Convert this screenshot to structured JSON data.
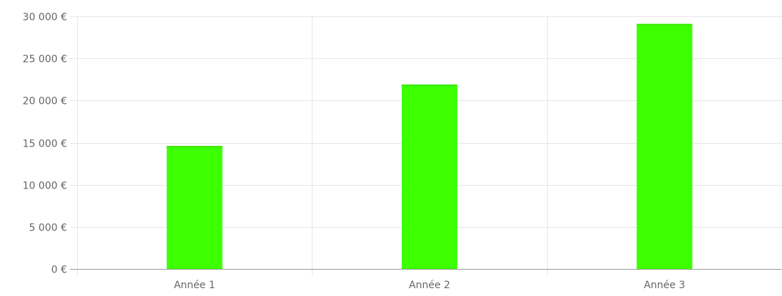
{
  "chart_data": {
    "type": "bar",
    "categories": [
      "Année 1",
      "Année 2",
      "Année 3"
    ],
    "values": [
      14600,
      21900,
      29100
    ],
    "ylim": [
      0,
      30000
    ],
    "y_ticks": [
      0,
      5000,
      10000,
      15000,
      20000,
      25000,
      30000
    ],
    "y_tick_labels": [
      "0 €",
      "5 000 €",
      "10 000 €",
      "15 000 €",
      "20 000 €",
      "25 000 €",
      "30 000 €"
    ],
    "grid": true,
    "legend": "none",
    "colors": {
      "bar_fill": "#3cff00",
      "bar_top": "#36e600",
      "grid": "#e6e6e6",
      "axis": "#999999",
      "text": "#666666"
    }
  }
}
